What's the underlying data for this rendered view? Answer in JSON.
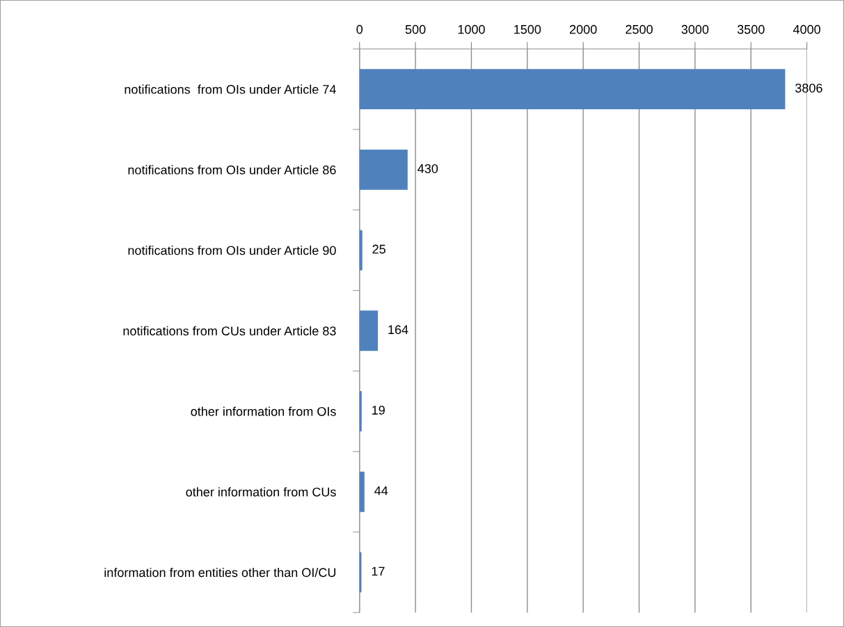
{
  "chart_data": {
    "type": "bar",
    "orientation": "horizontal",
    "categories": [
      "notifications  from OIs under Article 74",
      "notifications from OIs under Article 86",
      "notifications from OIs under Article 90",
      "notifications from CUs under Article 83",
      "other information from OIs",
      "other information from CUs",
      "information from entities other than OI/CU"
    ],
    "values": [
      3806,
      430,
      25,
      164,
      19,
      44,
      17
    ],
    "color": "#4f81bd",
    "xlim": [
      0,
      4000
    ],
    "xticks": [
      0,
      500,
      1000,
      1500,
      2000,
      2500,
      3000,
      3500,
      4000
    ],
    "grid": "x",
    "data_labels": true
  }
}
